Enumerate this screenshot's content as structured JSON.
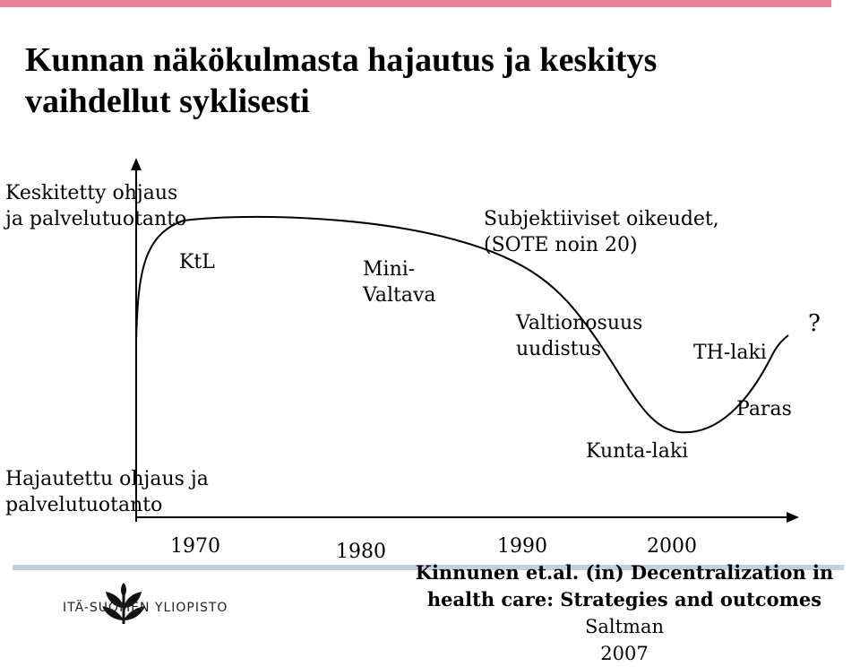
{
  "title_line1": "Kunnan näkökulmasta hajautus ja keskitys",
  "title_line2": "vaihdellut syklisesti",
  "y_axis": {
    "top_line1": "Keskitetty ohjaus",
    "top_line2": "ja palvelutuotanto",
    "bottom_line1": "Hajautettu ohjaus ja",
    "bottom_line2": "palvelutuotanto"
  },
  "years": [
    "1970",
    "1980",
    "1990",
    "2000"
  ],
  "annotations": {
    "ktl": "KtL",
    "mini_line1": "Mini-",
    "mini_line2": "Valtava",
    "subj_line1": "Subjektiiviset oikeudet,",
    "subj_line2": "(SOTE noin 20)",
    "val_line1": "Valtionosuus",
    "val_line2": "uudistus",
    "th": "TH-laki",
    "question": "?",
    "paras": "Paras",
    "kunta": "Kunta-laki"
  },
  "citation": {
    "bold1": "Kinnunen et.al. (in) Decentralization in",
    "bold2": "health care:  Strategies and outcomes",
    "normal": " Saltman",
    "year": "2007"
  },
  "logo": {
    "text": "ITÄ-SUOMEN YLIOPISTO"
  },
  "colors": {
    "accent_bar": "#e7839b",
    "footer_rule": "#c5cfd9"
  }
}
